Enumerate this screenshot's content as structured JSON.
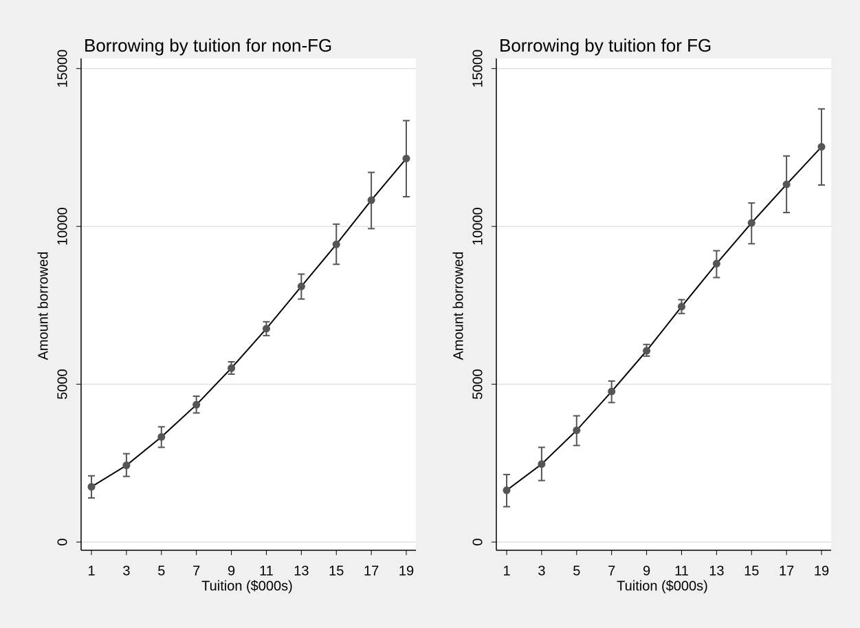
{
  "chart_data": [
    {
      "type": "line",
      "title": "Borrowing by tuition for non-FG",
      "x_label": "Tuition ($000s)",
      "y_label": "Amount borrowed",
      "x": [
        1,
        3,
        5,
        7,
        9,
        11,
        13,
        15,
        17,
        19
      ],
      "series": [
        {
          "color": "#555555",
          "values": [
            1750,
            2430,
            3330,
            4350,
            5510,
            6760,
            8100,
            9430,
            10830,
            12150
          ],
          "lower": [
            1400,
            2080,
            3000,
            4090,
            5320,
            6540,
            7700,
            8800,
            9930,
            10940
          ],
          "upper": [
            2100,
            2800,
            3650,
            4620,
            5710,
            6980,
            8490,
            10070,
            11710,
            13350
          ]
        }
      ],
      "xlim": [
        0.41,
        19.55
      ],
      "xticks": [
        1,
        3,
        5,
        7,
        9,
        11,
        13,
        15,
        17,
        19
      ],
      "ylim": [
        -260,
        15320
      ],
      "yticks": [
        0,
        5000,
        10000,
        15000
      ],
      "grid": true
    },
    {
      "type": "line",
      "title": "Borrowing by tuition for FG",
      "x_label": "Tuition ($000s)",
      "y_label": "Amount borrowed",
      "x": [
        1,
        3,
        5,
        7,
        9,
        11,
        13,
        15,
        17,
        19
      ],
      "series": [
        {
          "color": "#555555",
          "values": [
            1640,
            2470,
            3540,
            4770,
            6060,
            7460,
            8820,
            10110,
            11330,
            12520
          ],
          "lower": [
            1120,
            1950,
            3060,
            4420,
            5890,
            7240,
            8380,
            9450,
            10440,
            11310
          ],
          "upper": [
            2140,
            3000,
            4000,
            5100,
            6260,
            7680,
            9230,
            10740,
            12230,
            13720
          ]
        }
      ],
      "xlim": [
        0.41,
        19.55
      ],
      "xticks": [
        1,
        3,
        5,
        7,
        9,
        11,
        13,
        15,
        17,
        19
      ],
      "ylim": [
        -260,
        15320
      ],
      "yticks": [
        0,
        5000,
        10000,
        15000
      ],
      "grid": true
    }
  ]
}
